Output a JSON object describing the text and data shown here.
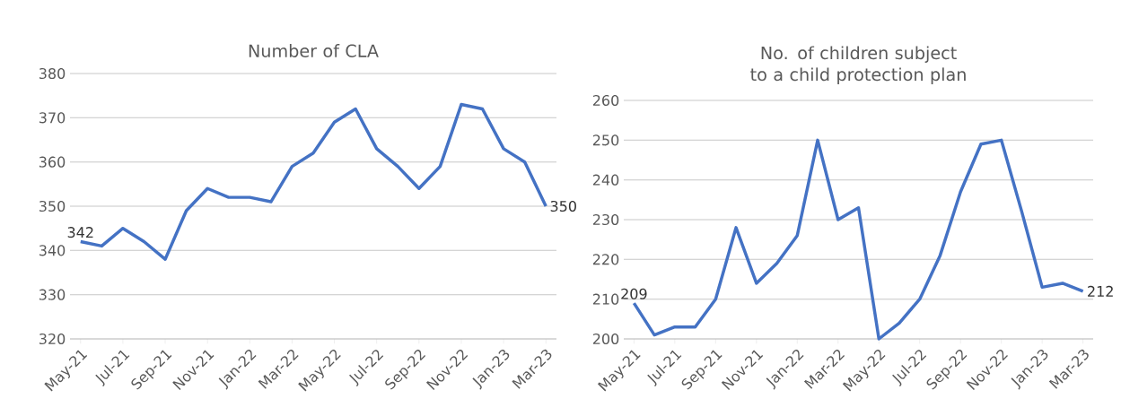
{
  "chart_data": [
    {
      "type": "line",
      "title": "Number of CLA",
      "categories": [
        "May-21",
        null,
        "Jul-21",
        null,
        "Sep-21",
        null,
        "Nov-21",
        null,
        "Jan-22",
        null,
        "Mar-22",
        null,
        "May-22",
        null,
        "Jul-22",
        null,
        "Sep-22",
        null,
        "Nov-22",
        null,
        "Jan-23",
        null,
        "Mar-23"
      ],
      "values": [
        342,
        341,
        345,
        342,
        338,
        349,
        354,
        352,
        352,
        351,
        359,
        362,
        369,
        372,
        363,
        359,
        354,
        359,
        373,
        372,
        363,
        360,
        350
      ],
      "value_labels": [
        "342",
        null,
        null,
        null,
        null,
        null,
        null,
        null,
        null,
        null,
        null,
        null,
        null,
        null,
        null,
        null,
        null,
        null,
        null,
        null,
        null,
        null,
        "350"
      ],
      "color": "#4472c4",
      "ylim": [
        320,
        380
      ],
      "yticks": [
        320,
        330,
        340,
        350,
        360,
        370,
        380
      ],
      "grid": "y",
      "marker": "none"
    },
    {
      "type": "line",
      "title": "No. of children subject to a child protection plan",
      "categories": [
        "May-21",
        null,
        "Jul-21",
        null,
        "Sep-21",
        null,
        "Nov-21",
        null,
        "Jan-22",
        null,
        "Mar-22",
        null,
        "May-22",
        null,
        "Jul-22",
        null,
        "Sep-22",
        null,
        "Nov-22",
        null,
        "Jan-23",
        null,
        "Mar-23"
      ],
      "values": [
        209,
        201,
        203,
        203,
        210,
        228,
        214,
        219,
        226,
        250,
        230,
        233,
        200,
        204,
        210,
        221,
        237,
        249,
        250,
        232,
        213,
        214,
        212
      ],
      "value_labels": [
        "209",
        null,
        null,
        null,
        null,
        null,
        null,
        null,
        null,
        null,
        null,
        null,
        null,
        null,
        null,
        null,
        null,
        null,
        null,
        null,
        null,
        null,
        "212"
      ],
      "color": "#4472c4",
      "ylim": [
        200,
        260
      ],
      "yticks": [
        200,
        210,
        220,
        230,
        240,
        250,
        260
      ],
      "grid": "y",
      "marker": "none"
    }
  ]
}
